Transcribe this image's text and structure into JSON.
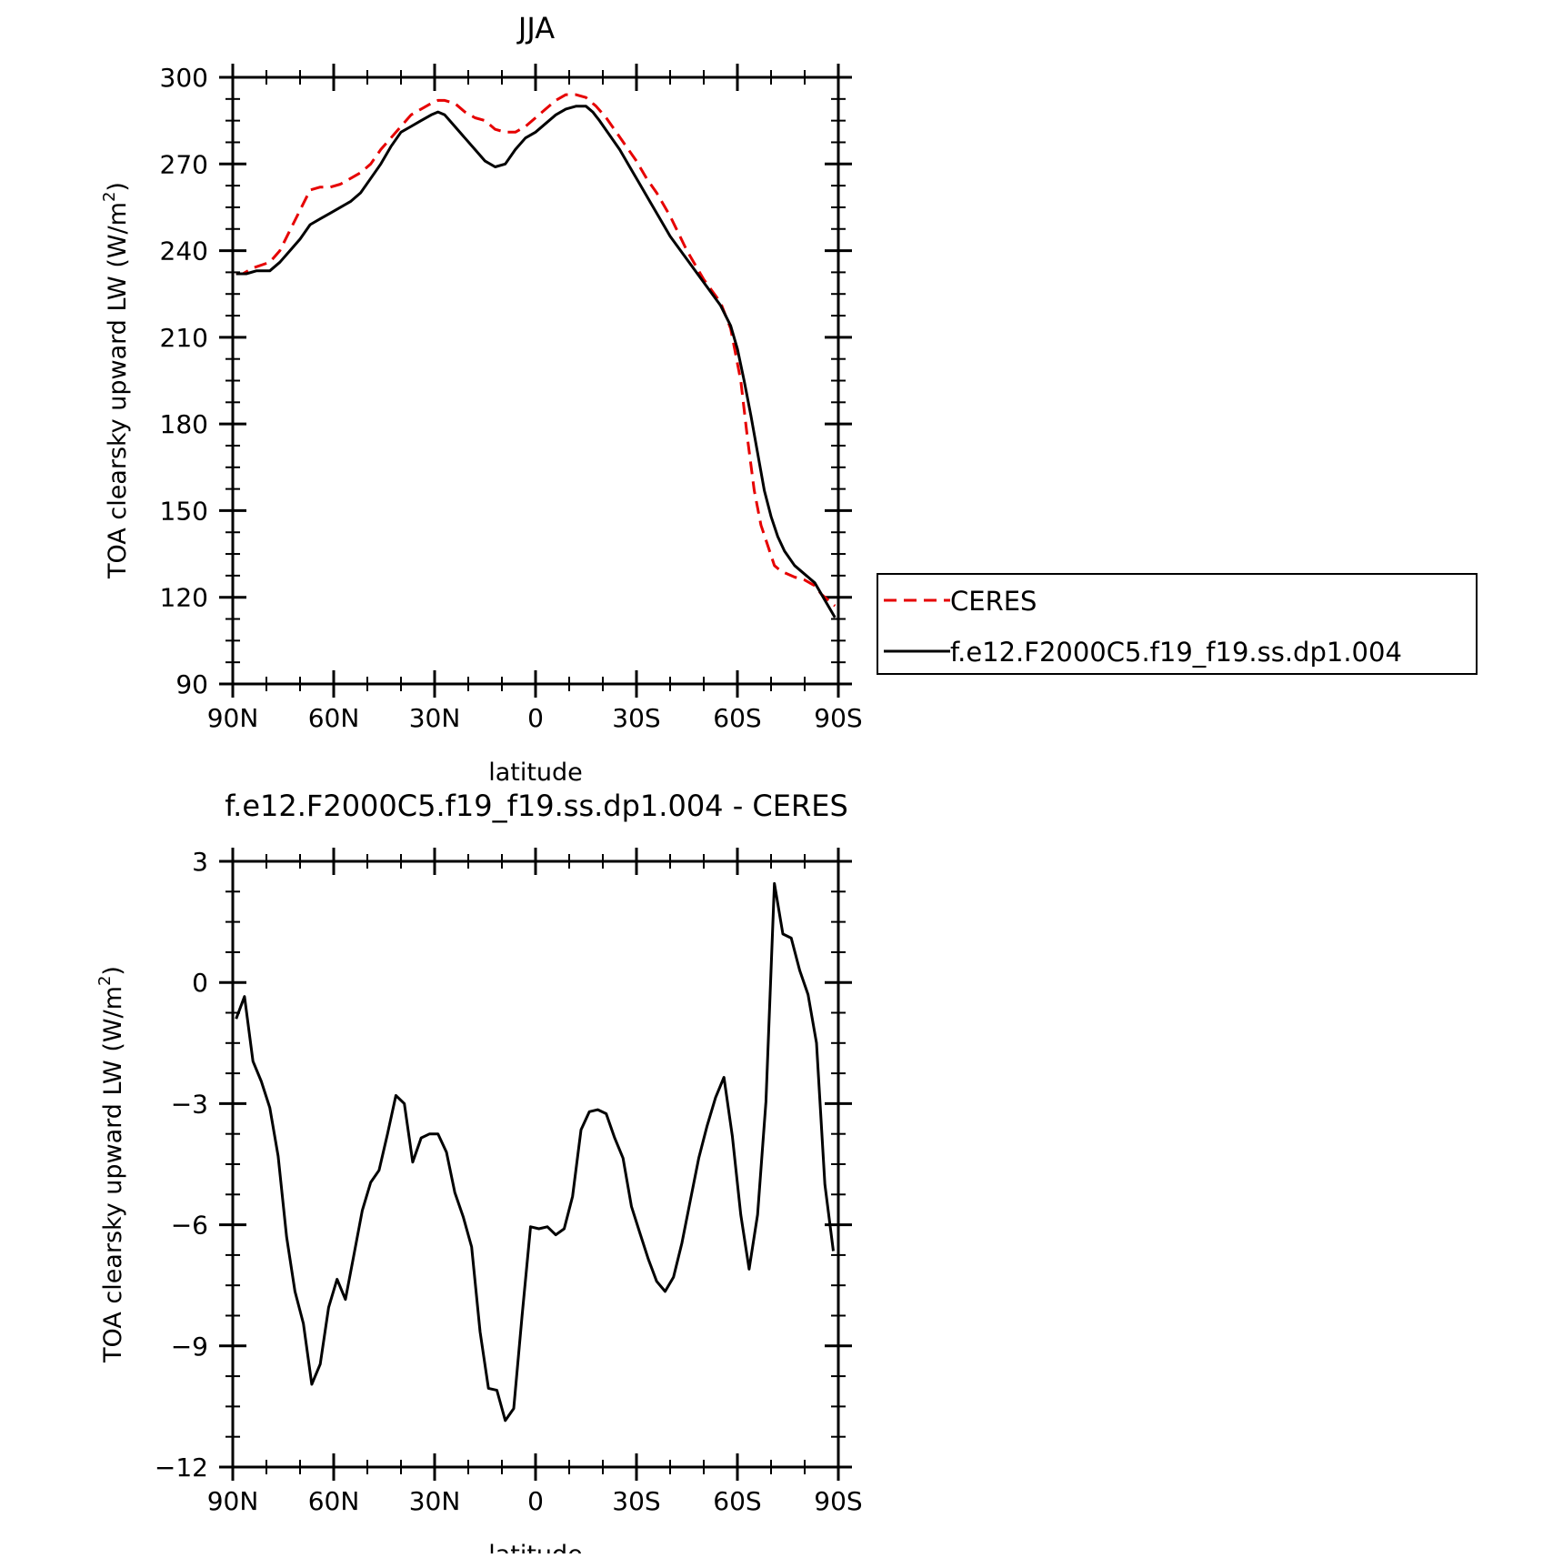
{
  "chart_data": [
    {
      "type": "line",
      "title": "JJA",
      "xlabel": "latitude",
      "ylabel": "TOA clearsky upward LW (W/m",
      "ylabel_exponent": "2",
      "ylabel_suffix": ")",
      "xlim": [
        90,
        -90
      ],
      "ylim": [
        90,
        300
      ],
      "x_ticks": [
        90,
        60,
        30,
        0,
        -30,
        -60,
        -90
      ],
      "x_tick_labels": [
        "90N",
        "60N",
        "30N",
        "0",
        "30S",
        "60S",
        "90S"
      ],
      "y_ticks": [
        90,
        120,
        150,
        180,
        210,
        240,
        270,
        300
      ],
      "y_tick_labels": [
        "90",
        "120",
        "150",
        "180",
        "210",
        "240",
        "270",
        "300"
      ],
      "grid": false,
      "legend_position": "right",
      "series": [
        {
          "name": "CERES",
          "color": "#e60000",
          "dash": "dashed",
          "x": [
            89,
            87,
            84,
            79,
            76,
            73,
            70,
            67,
            64,
            61,
            58,
            55,
            52,
            49,
            46,
            43,
            40,
            37,
            34,
            31,
            29,
            27,
            24,
            21,
            18,
            15,
            12,
            9,
            6,
            3,
            0,
            -3,
            -6,
            -9,
            -12,
            -15,
            -18,
            -21,
            -24,
            -27,
            -30,
            -33,
            -36,
            -40,
            -45,
            -50,
            -55,
            -58,
            -61,
            -63,
            -65,
            -67,
            -69,
            -71,
            -73,
            -75,
            -77,
            -80,
            -83,
            -85,
            -87,
            -89
          ],
          "y": [
            232,
            232,
            234,
            236,
            240,
            247,
            254,
            261,
            262,
            262,
            263,
            265,
            267,
            270,
            275,
            279,
            283,
            287,
            289,
            291,
            292,
            292,
            291,
            288,
            286,
            285,
            282,
            281,
            281,
            283,
            286,
            289,
            292,
            294,
            294,
            293,
            290,
            286,
            281,
            276,
            271,
            265,
            260,
            252,
            240,
            230,
            222,
            213,
            195,
            175,
            157,
            145,
            138,
            131,
            129,
            128,
            127,
            126,
            124,
            121,
            119,
            117
          ]
        },
        {
          "name": "f.e12.F2000C5.f19_f19.ss.dp1.004",
          "color": "#000000",
          "dash": "solid",
          "x": [
            89,
            86,
            83,
            79,
            76,
            73,
            70,
            67,
            64,
            61,
            58,
            55,
            52,
            49,
            46,
            43,
            40,
            37,
            34,
            31,
            29,
            27,
            24,
            21,
            18,
            15,
            12,
            9,
            6,
            3,
            0,
            -3,
            -6,
            -9,
            -12,
            -15,
            -17,
            -19,
            -22,
            -25,
            -28,
            -31,
            -34,
            -37,
            -40,
            -45,
            -50,
            -55,
            -58,
            -60,
            -62,
            -64,
            -66,
            -68,
            -70,
            -72,
            -74,
            -77,
            -80,
            -83,
            -86,
            -89
          ],
          "y": [
            232,
            232,
            233,
            233,
            236,
            240,
            244,
            249,
            251,
            253,
            255,
            257,
            260,
            265,
            270,
            276,
            281,
            283,
            285,
            287,
            288,
            287,
            283,
            279,
            275,
            271,
            269,
            270,
            275,
            279,
            281,
            284,
            287,
            289,
            290,
            290,
            288,
            285,
            280,
            275,
            269,
            263,
            257,
            251,
            245,
            237,
            229,
            221,
            214,
            206,
            195,
            183,
            170,
            157,
            148,
            141,
            136,
            131,
            128,
            125,
            119,
            113
          ]
        }
      ]
    },
    {
      "type": "line",
      "title": "f.e12.F2000C5.f19_f19.ss.dp1.004 - CERES",
      "xlabel": "latitude",
      "ylabel": "TOA clearsky upward LW (W/m",
      "ylabel_exponent": "2",
      "ylabel_suffix": ")",
      "xlim": [
        90,
        -90
      ],
      "ylim": [
        -12,
        3
      ],
      "x_ticks": [
        90,
        60,
        30,
        0,
        -30,
        -60,
        -90
      ],
      "x_tick_labels": [
        "90N",
        "60N",
        "30N",
        "0",
        "30S",
        "60S",
        "90S"
      ],
      "y_ticks": [
        -12,
        -9,
        -6,
        -3,
        0,
        3
      ],
      "y_tick_labels": [
        "−12",
        "−9",
        "−6",
        "−3",
        "0",
        "3"
      ],
      "grid": false,
      "series": [
        {
          "name": "f.e12.F2000C5.f19_f19.ss.dp1.004 - CERES",
          "color": "#000000",
          "dash": "solid",
          "x": [
            89,
            86.5,
            84,
            81.5,
            79,
            76.5,
            74,
            71.5,
            69,
            66.5,
            64,
            61.5,
            59,
            56.5,
            54,
            51.5,
            49,
            46.5,
            44,
            41.5,
            39,
            36.5,
            34,
            31.5,
            29,
            26.5,
            24,
            21.5,
            19,
            16.5,
            14,
            11.5,
            9,
            6.5,
            4,
            1.5,
            -1,
            -3.5,
            -6,
            -8.5,
            -11,
            -13.5,
            -16,
            -18.5,
            -21,
            -23.5,
            -26,
            -28.5,
            -31,
            -33.5,
            -36,
            -38.5,
            -41,
            -43.5,
            -46,
            -48.5,
            -51,
            -53.5,
            -56,
            -58.5,
            -61,
            -63.5,
            -66,
            -68.5,
            -71,
            -73.5,
            -76,
            -78.5,
            -81,
            -83.5,
            -86,
            -88.5
          ],
          "y": [
            -0.9,
            -0.35,
            -1.95,
            -2.45,
            -3.1,
            -4.3,
            -6.3,
            -7.65,
            -8.45,
            -9.95,
            -9.45,
            -8.05,
            -7.35,
            -7.85,
            -6.75,
            -5.65,
            -4.95,
            -4.65,
            -3.75,
            -2.8,
            -3.0,
            -4.45,
            -3.85,
            -3.75,
            -3.75,
            -4.2,
            -5.2,
            -5.8,
            -6.55,
            -8.65,
            -10.05,
            -10.1,
            -10.85,
            -10.55,
            -8.25,
            -6.05,
            -6.1,
            -6.05,
            -6.25,
            -6.1,
            -5.3,
            -3.65,
            -3.2,
            -3.15,
            -3.25,
            -3.85,
            -4.35,
            -5.55,
            -6.2,
            -6.85,
            -7.4,
            -7.65,
            -7.3,
            -6.45,
            -5.4,
            -4.35,
            -3.55,
            -2.85,
            -2.35,
            -3.8,
            -5.75,
            -7.1,
            -5.75,
            -2.95,
            2.45,
            1.2,
            1.1,
            0.3,
            -0.3,
            -1.5,
            -5.0,
            -6.65
          ]
        }
      ]
    }
  ]
}
